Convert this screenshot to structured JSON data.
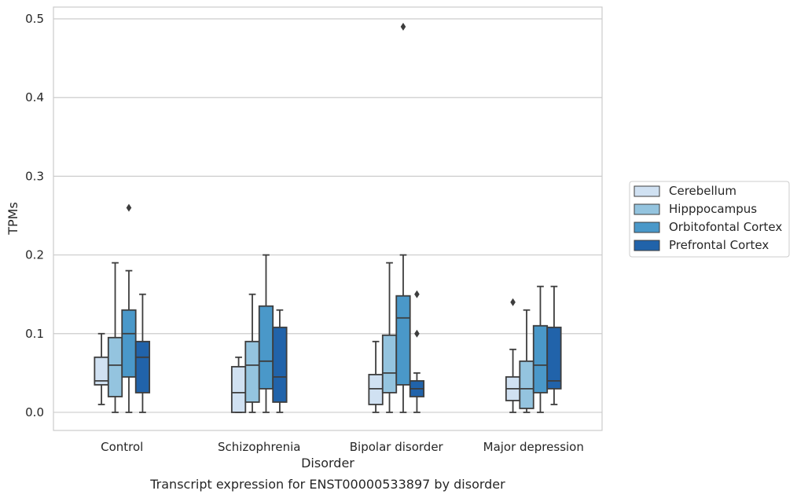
{
  "chart_data": {
    "type": "boxplot",
    "title": "Transcript expression for ENST00000533897 by disorder",
    "xlabel": "Disorder",
    "ylabel": "TPMs",
    "categories": [
      "Control",
      "Schizophrenia",
      "Bipolar disorder",
      "Major depression"
    ],
    "ylim": [
      -0.023,
      0.515
    ],
    "yticks": [
      0.0,
      0.1,
      0.2,
      0.3,
      0.4,
      0.5
    ],
    "ytick_labels": [
      "0.0",
      "0.1",
      "0.2",
      "0.3",
      "0.4",
      "0.5"
    ],
    "grid": true,
    "legend_position": "right",
    "series": [
      {
        "name": "Cerebellum",
        "color": "#d0e1f2",
        "boxes": [
          {
            "whislo": 0.01,
            "q1": 0.035,
            "med": 0.04,
            "q3": 0.07,
            "whishi": 0.1,
            "fliers": []
          },
          {
            "whislo": 0.0,
            "q1": 0.0,
            "med": 0.025,
            "q3": 0.058,
            "whishi": 0.07,
            "fliers": []
          },
          {
            "whislo": 0.0,
            "q1": 0.01,
            "med": 0.03,
            "q3": 0.048,
            "whishi": 0.09,
            "fliers": []
          },
          {
            "whislo": 0.0,
            "q1": 0.015,
            "med": 0.03,
            "q3": 0.045,
            "whishi": 0.08,
            "fliers": [
              0.14
            ]
          }
        ]
      },
      {
        "name": "Hipppocampus",
        "color": "#94c4df",
        "boxes": [
          {
            "whislo": 0.0,
            "q1": 0.02,
            "med": 0.06,
            "q3": 0.095,
            "whishi": 0.19,
            "fliers": []
          },
          {
            "whislo": 0.0,
            "q1": 0.013,
            "med": 0.06,
            "q3": 0.09,
            "whishi": 0.15,
            "fliers": []
          },
          {
            "whislo": 0.0,
            "q1": 0.025,
            "med": 0.05,
            "q3": 0.098,
            "whishi": 0.19,
            "fliers": []
          },
          {
            "whislo": 0.0,
            "q1": 0.005,
            "med": 0.03,
            "q3": 0.065,
            "whishi": 0.13,
            "fliers": []
          }
        ]
      },
      {
        "name": "Orbitofontal Cortex",
        "color": "#4a98c9",
        "boxes": [
          {
            "whislo": 0.0,
            "q1": 0.045,
            "med": 0.1,
            "q3": 0.13,
            "whishi": 0.18,
            "fliers": [
              0.26
            ]
          },
          {
            "whislo": 0.0,
            "q1": 0.03,
            "med": 0.065,
            "q3": 0.135,
            "whishi": 0.2,
            "fliers": []
          },
          {
            "whislo": 0.0,
            "q1": 0.035,
            "med": 0.12,
            "q3": 0.148,
            "whishi": 0.2,
            "fliers": [
              0.49
            ]
          },
          {
            "whislo": 0.0,
            "q1": 0.025,
            "med": 0.06,
            "q3": 0.11,
            "whishi": 0.16,
            "fliers": []
          }
        ]
      },
      {
        "name": "Prefrontal Cortex",
        "color": "#2163aa",
        "boxes": [
          {
            "whislo": 0.0,
            "q1": 0.025,
            "med": 0.07,
            "q3": 0.09,
            "whishi": 0.15,
            "fliers": []
          },
          {
            "whislo": 0.0,
            "q1": 0.013,
            "med": 0.045,
            "q3": 0.108,
            "whishi": 0.13,
            "fliers": []
          },
          {
            "whislo": 0.0,
            "q1": 0.02,
            "med": 0.03,
            "q3": 0.04,
            "whishi": 0.05,
            "fliers": [
              0.1,
              0.15
            ]
          },
          {
            "whislo": 0.01,
            "q1": 0.03,
            "med": 0.04,
            "q3": 0.108,
            "whishi": 0.16,
            "fliers": []
          }
        ]
      }
    ]
  }
}
